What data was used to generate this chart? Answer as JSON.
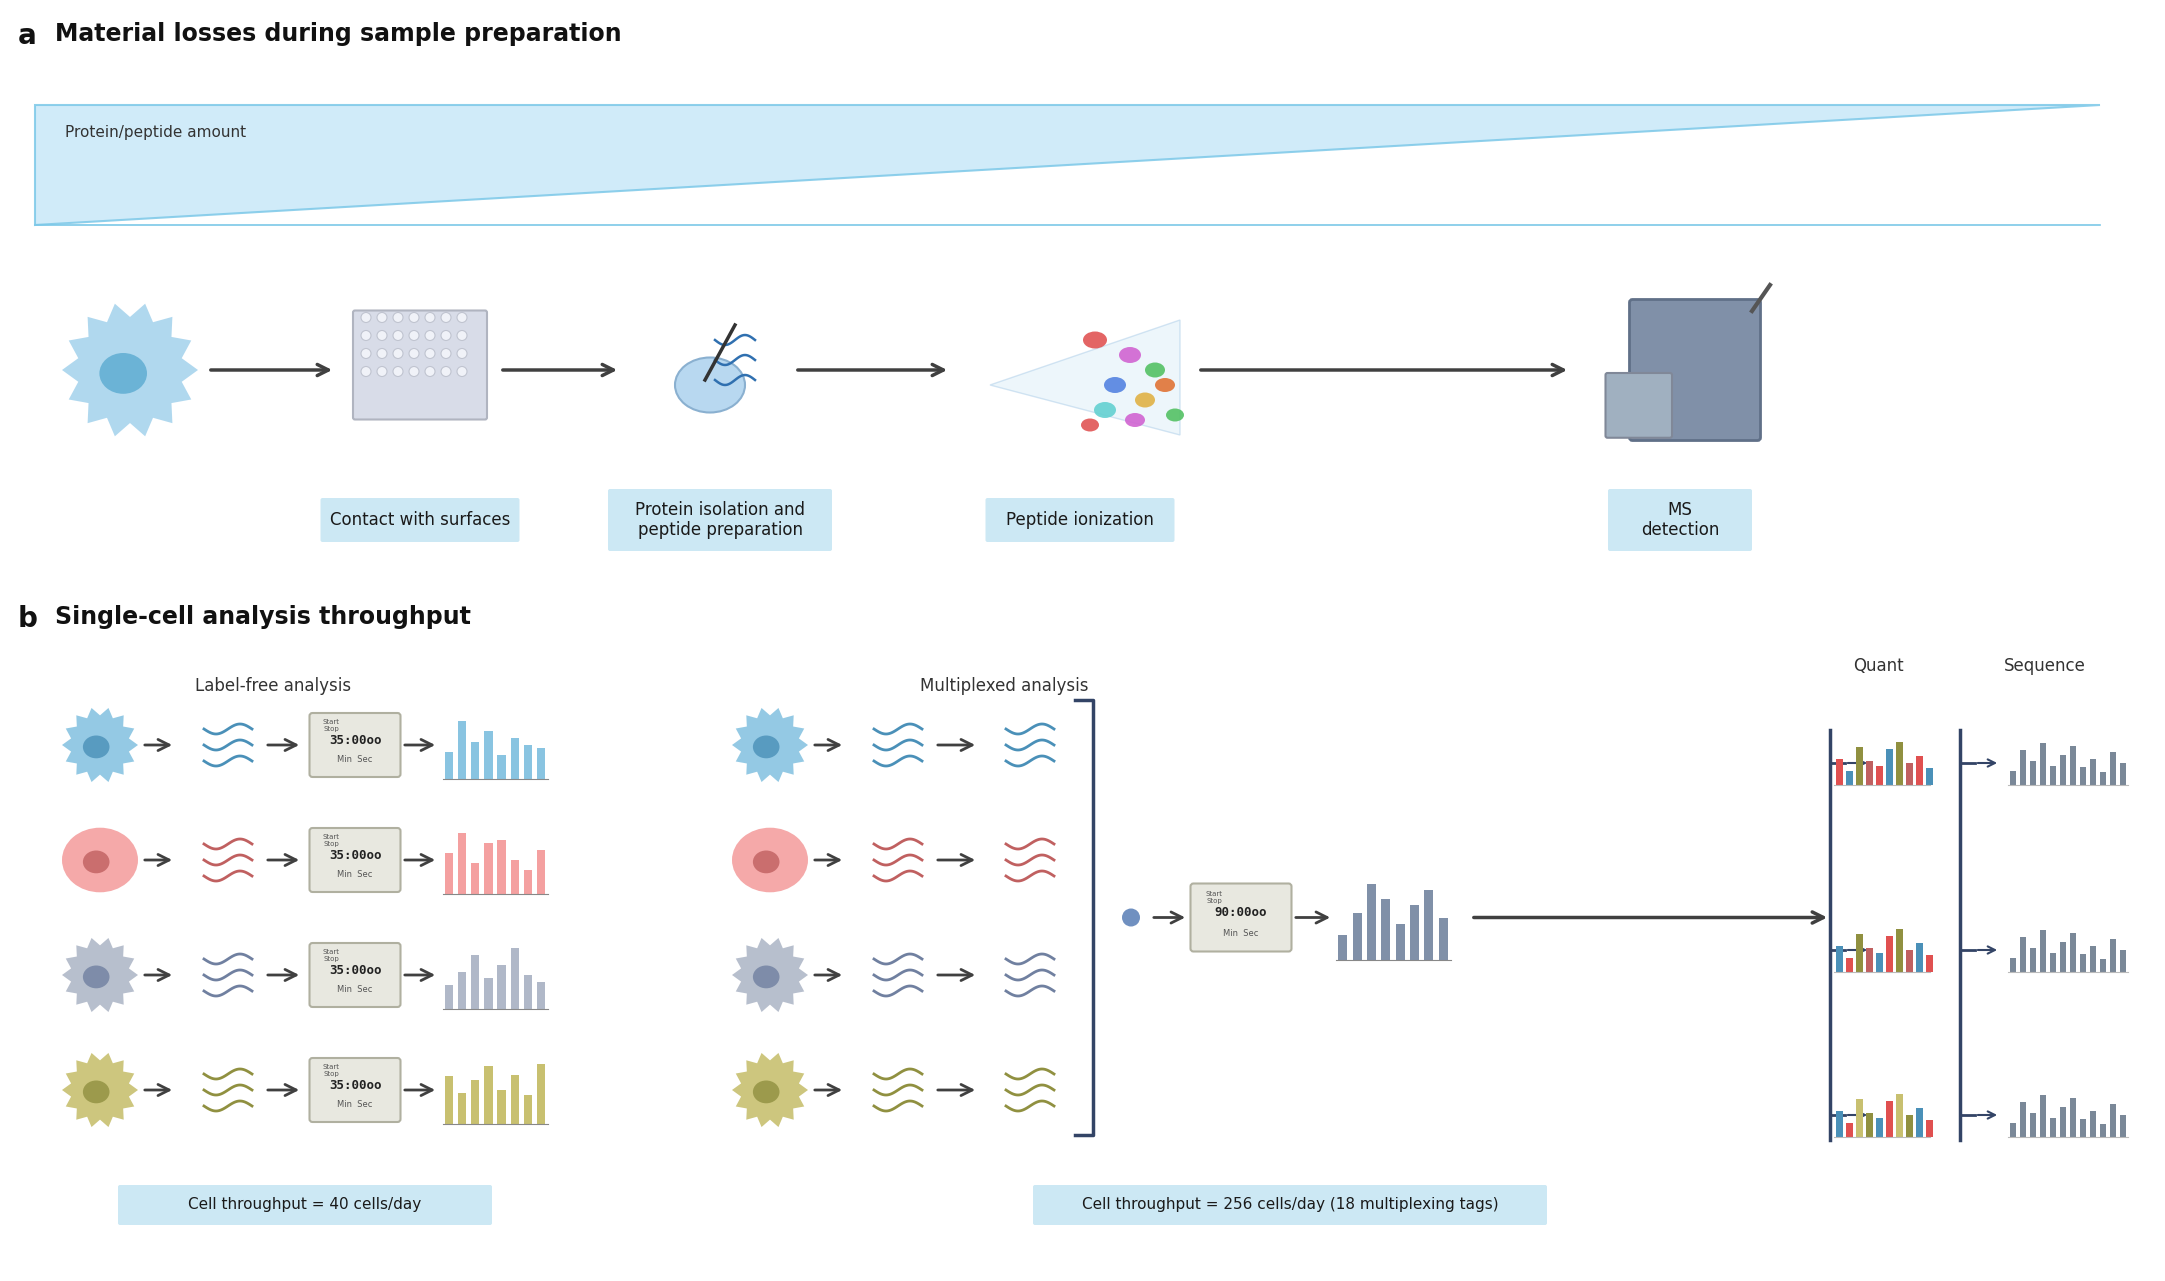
{
  "title_a": "Material losses during sample preparation",
  "title_b": "Single-cell analysis throughput",
  "panel_a_label": "a",
  "panel_b_label": "b",
  "protein_peptide_label": "Protein/peptide amount",
  "step_labels_a": [
    "Contact with surfaces",
    "Protein isolation and\npeptide preparation",
    "Peptide ionization",
    "MS\ndetection"
  ],
  "label_free_title": "Label-free analysis",
  "multiplexed_title": "Multiplexed analysis",
  "quant_label": "Quant",
  "sequence_label": "Sequence",
  "throughput_label_free": "Cell throughput = 40 cells/day",
  "throughput_multiplexed": "Cell throughput = 256 cells/day (18 multiplexing tags)",
  "cell_colors": [
    "#89c4e1",
    "#f4a0a0",
    "#b0b8c8",
    "#c8c070"
  ],
  "nucleus_colors": [
    "#4a90b8",
    "#c06060",
    "#7080a0",
    "#909040"
  ],
  "wavy_colors": [
    "#4a90b8",
    "#c06060",
    "#7080a0",
    "#909040"
  ],
  "label_box_color": "#c8e6f5",
  "arrow_color": "#404040",
  "triangle_fill": "#c8e8f8",
  "triangle_edge": "#7cc8e8",
  "multiplexed_bar_color": "#8090a8",
  "bg_color": "#ffffff",
  "text_color": "#1a1a1a",
  "step_box_color": "#cce8f4",
  "timer_color": "#e8e8e0",
  "timer_border": "#c0c0b0",
  "ms_body_color": "#8090a8",
  "ms_edge_color": "#607088",
  "ms_side_color": "#a0b0c0",
  "ms_side_edge": "#808898"
}
